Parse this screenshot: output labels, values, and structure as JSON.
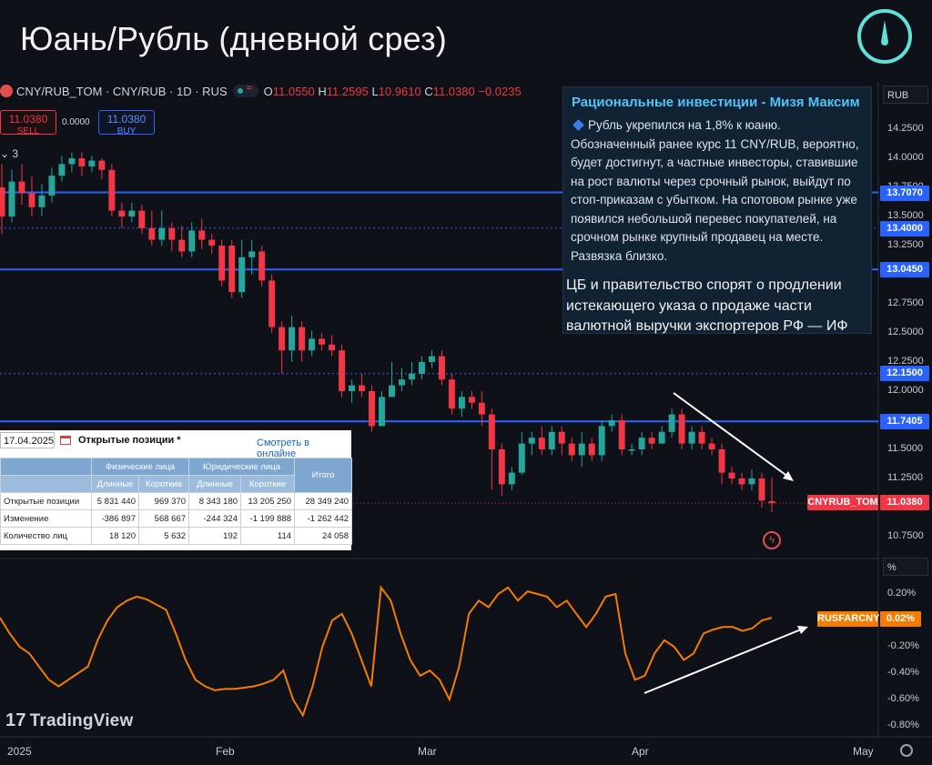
{
  "title": "Юань/Рубль (дневной срез)",
  "toolbar": {
    "symbol": "CNY/RUB_TOM · CNY/RUB · 1D · RUS",
    "open_label": "O",
    "open": "11.0550",
    "high_label": "H",
    "high": "11.2595",
    "low_label": "L",
    "low": "10.9610",
    "close_label": "C",
    "close": "11.0380",
    "change": "−0.0235",
    "sell_price": "11.0380",
    "sell_label": "SELL",
    "buy_price": "11.0380",
    "buy_label": "BUY",
    "spread": "0.0000",
    "indicators_count": "3",
    "currency": "RUB",
    "pane_unit": "%"
  },
  "news": {
    "title": "Рациональные инвестиции - Мизя Максим",
    "body": "Рубль укрепился на 1,8% к юаню. Обозначенный ранее курс 11 CNY/RUB, вероятно, будет достигнут, а частные инвесторы, ставившие на рост валюты через срочный рынок, выйдут по стоп-приказам с убытком. На спотовом рынке уже появился небольшой перевес покупателей, на срочном рынке крупный продавец на месте. Развязка близко.",
    "headline2": "ЦБ и правительство спорят о продлении истекающего указа о продаже части валютной выручки экспортеров РФ  — ИФ"
  },
  "positions": {
    "date": "17.04.2025",
    "title": "Открытые позиции *",
    "link": "Смотреть в онлайне",
    "group_physical": "Физические лица",
    "group_legal": "Юридические лица",
    "total_header": "Итого",
    "sub_headers": [
      "Длинные",
      "Короткие",
      "Длинные",
      "Короткие"
    ],
    "rows": [
      {
        "label": "Открытые позиции",
        "values": [
          "5 831 440",
          "969 370",
          "8 343 180",
          "13 205 250",
          "28 349 240"
        ]
      },
      {
        "label": "Изменение",
        "values": [
          "-386 897",
          "568 667",
          "-244 324",
          "-1 199 888",
          "-1 262 442"
        ]
      },
      {
        "label": "Количество лиц",
        "values": [
          "18 120",
          "5 632",
          "192",
          "114",
          "24 058"
        ]
      }
    ]
  },
  "tags": {
    "level_1": "13.7070",
    "level_2": "13.4000",
    "level_3": "13.0450",
    "level_4": "12.1500",
    "level_5": "11.7405",
    "symbol_tag": "CNYRUB_TOM",
    "price_tag": "11.0380",
    "ind_tag": "RUSFARCNY",
    "ind_value": "0.02%"
  },
  "watermark": "TradingView",
  "colors": {
    "up": "#26a69a",
    "down": "#f23645",
    "level": "#2962ff",
    "indicator": "#f57c00",
    "background": "#0e1118"
  },
  "chart_data": [
    {
      "type": "candlestick",
      "x_labels": [
        "2025",
        "Feb",
        "Mar",
        "Apr",
        "May"
      ],
      "price_axis": [
        "14.2500",
        "14.0000",
        "13.7500",
        "13.5000",
        "13.2500",
        "13.0000",
        "12.7500",
        "12.5000",
        "12.2500",
        "12.0000",
        "11.7500",
        "11.5000",
        "11.2500",
        "10.7500"
      ],
      "ylim": [
        10.7,
        14.35
      ],
      "levels": [
        {
          "price": 13.707,
          "style": "solid"
        },
        {
          "price": 13.4,
          "style": "dotted"
        },
        {
          "price": 13.045,
          "style": "solid"
        },
        {
          "price": 12.15,
          "style": "dotted"
        },
        {
          "price": 11.7405,
          "style": "solid"
        }
      ],
      "last": 11.038,
      "candles": [
        [
          13.75,
          13.5,
          13.95,
          13.35
        ],
        [
          13.5,
          13.8,
          13.9,
          13.45
        ],
        [
          13.8,
          13.7,
          13.95,
          13.6
        ],
        [
          13.7,
          13.58,
          13.85,
          13.5
        ],
        [
          13.58,
          13.68,
          13.78,
          13.5
        ],
        [
          13.68,
          13.85,
          13.92,
          13.62
        ],
        [
          13.85,
          13.95,
          14.02,
          13.8
        ],
        [
          13.95,
          14.0,
          14.05,
          13.88
        ],
        [
          14.0,
          13.93,
          14.05,
          13.85
        ],
        [
          13.93,
          13.98,
          14.02,
          13.88
        ],
        [
          13.98,
          13.9,
          14.0,
          13.82
        ],
        [
          13.9,
          13.55,
          13.95,
          13.5
        ],
        [
          13.55,
          13.5,
          13.62,
          13.4
        ],
        [
          13.5,
          13.55,
          13.62,
          13.45
        ],
        [
          13.55,
          13.4,
          13.6,
          13.35
        ],
        [
          13.4,
          13.3,
          13.55,
          13.25
        ],
        [
          13.3,
          13.4,
          13.55,
          13.25
        ],
        [
          13.4,
          13.3,
          13.45,
          13.2
        ],
        [
          13.3,
          13.2,
          13.42,
          13.15
        ],
        [
          13.2,
          13.38,
          13.45,
          13.15
        ],
        [
          13.38,
          13.3,
          13.48,
          13.22
        ],
        [
          13.3,
          13.25,
          13.35,
          13.18
        ],
        [
          13.25,
          12.95,
          13.3,
          12.9
        ],
        [
          13.25,
          12.85,
          13.3,
          12.8
        ],
        [
          12.85,
          13.15,
          13.3,
          12.8
        ],
        [
          13.15,
          13.2,
          13.3,
          13.0
        ],
        [
          13.2,
          12.95,
          13.25,
          12.9
        ],
        [
          12.95,
          12.55,
          13.0,
          12.5
        ],
        [
          12.55,
          12.35,
          12.6,
          12.15
        ],
        [
          12.35,
          12.55,
          12.65,
          12.25
        ],
        [
          12.55,
          12.35,
          12.6,
          12.25
        ],
        [
          12.35,
          12.45,
          12.52,
          12.3
        ],
        [
          12.45,
          12.4,
          12.5,
          12.35
        ],
        [
          12.4,
          12.35,
          12.48,
          12.3
        ],
        [
          12.35,
          12.0,
          12.4,
          11.95
        ],
        [
          12.0,
          12.05,
          12.1,
          11.9
        ],
        [
          12.05,
          12.0,
          12.15,
          11.95
        ],
        [
          12.0,
          11.7,
          12.05,
          11.65
        ],
        [
          11.7,
          11.95,
          12.0,
          11.7
        ],
        [
          11.95,
          12.05,
          12.25,
          11.95
        ],
        [
          12.05,
          12.1,
          12.2,
          12.0
        ],
        [
          12.1,
          12.15,
          12.25,
          12.05
        ],
        [
          12.15,
          12.25,
          12.3,
          12.1
        ],
        [
          12.25,
          12.3,
          12.35,
          12.2
        ],
        [
          12.3,
          12.1,
          12.35,
          12.05
        ],
        [
          12.1,
          11.85,
          12.15,
          11.8
        ],
        [
          11.85,
          11.95,
          12.0,
          11.78
        ],
        [
          11.95,
          11.9,
          12.0,
          11.85
        ],
        [
          11.9,
          11.8,
          12.0,
          11.7
        ],
        [
          11.8,
          11.5,
          11.85,
          11.15
        ],
        [
          11.5,
          11.2,
          11.55,
          11.1
        ],
        [
          11.2,
          11.3,
          11.35,
          11.15
        ],
        [
          11.3,
          11.55,
          11.65,
          11.28
        ],
        [
          11.55,
          11.6,
          11.65,
          11.45
        ],
        [
          11.6,
          11.5,
          11.7,
          11.45
        ],
        [
          11.5,
          11.65,
          11.7,
          11.45
        ],
        [
          11.65,
          11.55,
          11.7,
          11.45
        ],
        [
          11.55,
          11.45,
          11.6,
          11.4
        ],
        [
          11.45,
          11.55,
          11.65,
          11.35
        ],
        [
          11.55,
          11.45,
          11.6,
          11.4
        ],
        [
          11.45,
          11.7,
          11.75,
          11.4
        ],
        [
          11.7,
          11.75,
          11.8,
          11.65
        ],
        [
          11.75,
          11.5,
          11.8,
          11.45
        ],
        [
          11.5,
          11.5,
          11.55,
          11.45
        ],
        [
          11.5,
          11.6,
          11.65,
          11.45
        ],
        [
          11.6,
          11.55,
          11.65,
          11.5
        ],
        [
          11.55,
          11.65,
          11.7,
          11.55
        ],
        [
          11.65,
          11.8,
          11.85,
          11.6
        ],
        [
          11.8,
          11.55,
          11.85,
          11.5
        ],
        [
          11.55,
          11.65,
          11.7,
          11.5
        ],
        [
          11.65,
          11.55,
          11.7,
          11.5
        ],
        [
          11.55,
          11.5,
          11.6,
          11.45
        ],
        [
          11.5,
          11.3,
          11.55,
          11.2
        ],
        [
          11.3,
          11.25,
          11.35,
          11.2
        ],
        [
          11.25,
          11.2,
          11.3,
          11.15
        ],
        [
          11.2,
          11.25,
          11.33,
          11.15
        ],
        [
          11.25,
          11.06,
          11.3,
          11.0
        ],
        [
          11.055,
          11.038,
          11.26,
          10.961
        ]
      ]
    },
    {
      "type": "line",
      "name": "RUSFARCNY",
      "yaxis": [
        "0.20%",
        "0.02%",
        "-0.20%",
        "-0.40%",
        "-0.60%",
        "-0.80%"
      ],
      "ylim": [
        -0.85,
        0.32
      ],
      "values": [
        0.02,
        -0.1,
        -0.2,
        -0.25,
        -0.35,
        -0.45,
        -0.5,
        -0.45,
        -0.4,
        -0.35,
        -0.15,
        0.0,
        0.1,
        0.15,
        0.18,
        0.16,
        0.12,
        0.08,
        -0.1,
        -0.3,
        -0.45,
        -0.5,
        -0.53,
        -0.52,
        -0.52,
        -0.51,
        -0.5,
        -0.48,
        -0.45,
        -0.38,
        -0.6,
        -0.72,
        -0.5,
        -0.2,
        -0.0,
        0.05,
        -0.1,
        -0.3,
        -0.5,
        0.25,
        0.15,
        -0.1,
        -0.3,
        -0.42,
        -0.38,
        -0.45,
        -0.6,
        -0.35,
        0.05,
        0.15,
        0.1,
        0.2,
        0.25,
        0.15,
        0.22,
        0.2,
        0.18,
        0.1,
        0.15,
        0.05,
        -0.05,
        0.05,
        0.18,
        0.2,
        -0.25,
        -0.45,
        -0.42,
        -0.25,
        -0.15,
        -0.2,
        -0.3,
        -0.25,
        -0.1,
        -0.07,
        -0.05,
        -0.05,
        -0.08,
        -0.06,
        0.0,
        0.02
      ]
    }
  ]
}
